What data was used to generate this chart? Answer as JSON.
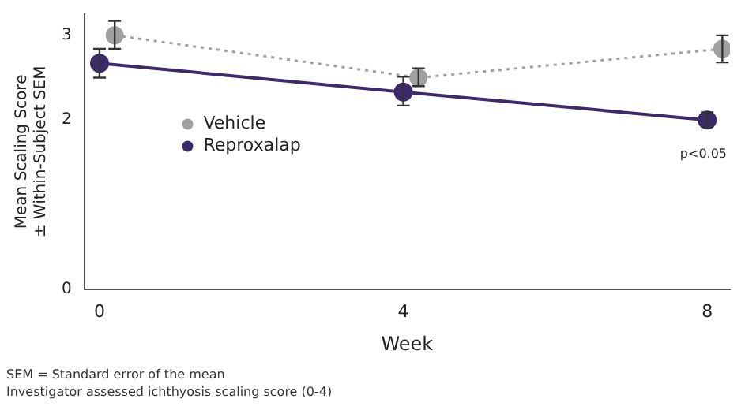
{
  "chart_data": {
    "type": "line",
    "xlabel": "Week",
    "ylabel": "Mean Scaling Score\n± Within-Subject SEM",
    "xlim": [
      -0.2,
      8.3
    ],
    "xticks": [
      0,
      4,
      8
    ],
    "ylim": [
      0,
      3.25
    ],
    "yticks": [
      0,
      2,
      3
    ],
    "grid": false,
    "legend": "left",
    "marker": "circle",
    "series": [
      {
        "name": "Vehicle",
        "color": "#a0a0a0",
        "line_style": "dotted",
        "x": [
          0.2,
          4.2,
          8.2
        ],
        "values": [
          3.0,
          2.5,
          2.84
        ],
        "errors": [
          [
            2.84,
            3.17
          ],
          [
            2.4,
            2.61
          ],
          [
            2.68,
            3.0
          ]
        ]
      },
      {
        "name": "Reproxalap",
        "color": "#3d2a6b",
        "line_style": "solid",
        "x": [
          0,
          4,
          8
        ],
        "values": [
          2.67,
          2.33,
          2.0
        ],
        "errors": [
          [
            2.5,
            2.84
          ],
          [
            2.17,
            2.51
          ],
          [
            1.92,
            2.09
          ]
        ]
      }
    ],
    "annotations": [
      "p<0.05",
      "SEM = Standard error of the mean",
      "Investigator assessed ichthyosis scaling score (0-4)"
    ]
  }
}
